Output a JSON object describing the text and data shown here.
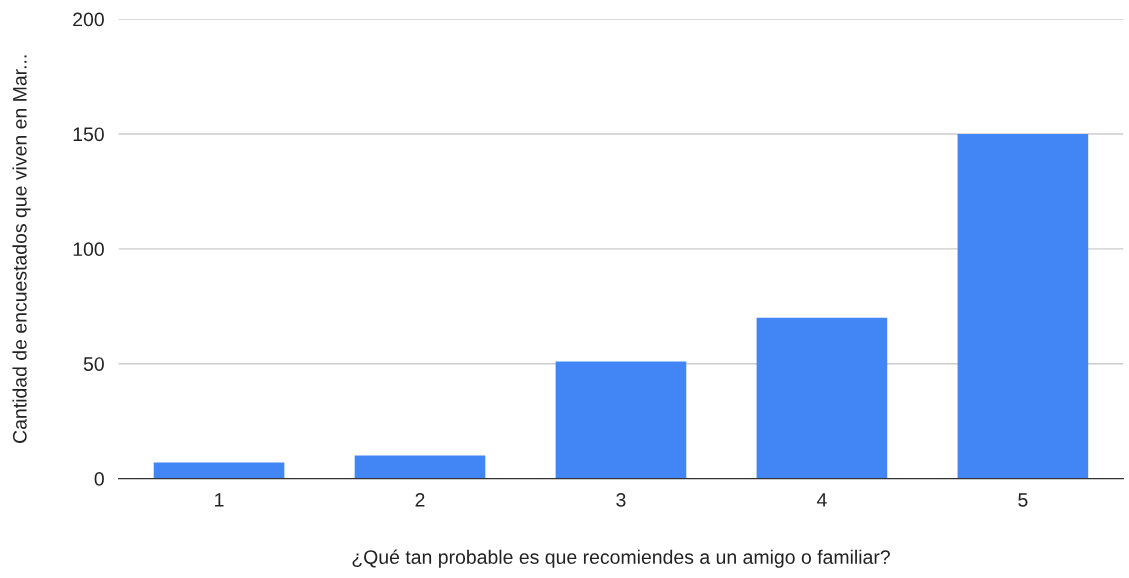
{
  "chart_data": {
    "type": "bar",
    "categories": [
      "1",
      "2",
      "3",
      "4",
      "5"
    ],
    "values": [
      7,
      10,
      51,
      70,
      150
    ],
    "color": "#4285f4",
    "xlabel": "¿Qué tan probable es que recomiendes a un amigo o familiar?",
    "ylabel": "Cantidad de encuestados que viven en Mar...",
    "ylim": [
      0,
      200
    ],
    "yticks": [
      0,
      50,
      100,
      150,
      200
    ],
    "grid": "y"
  }
}
